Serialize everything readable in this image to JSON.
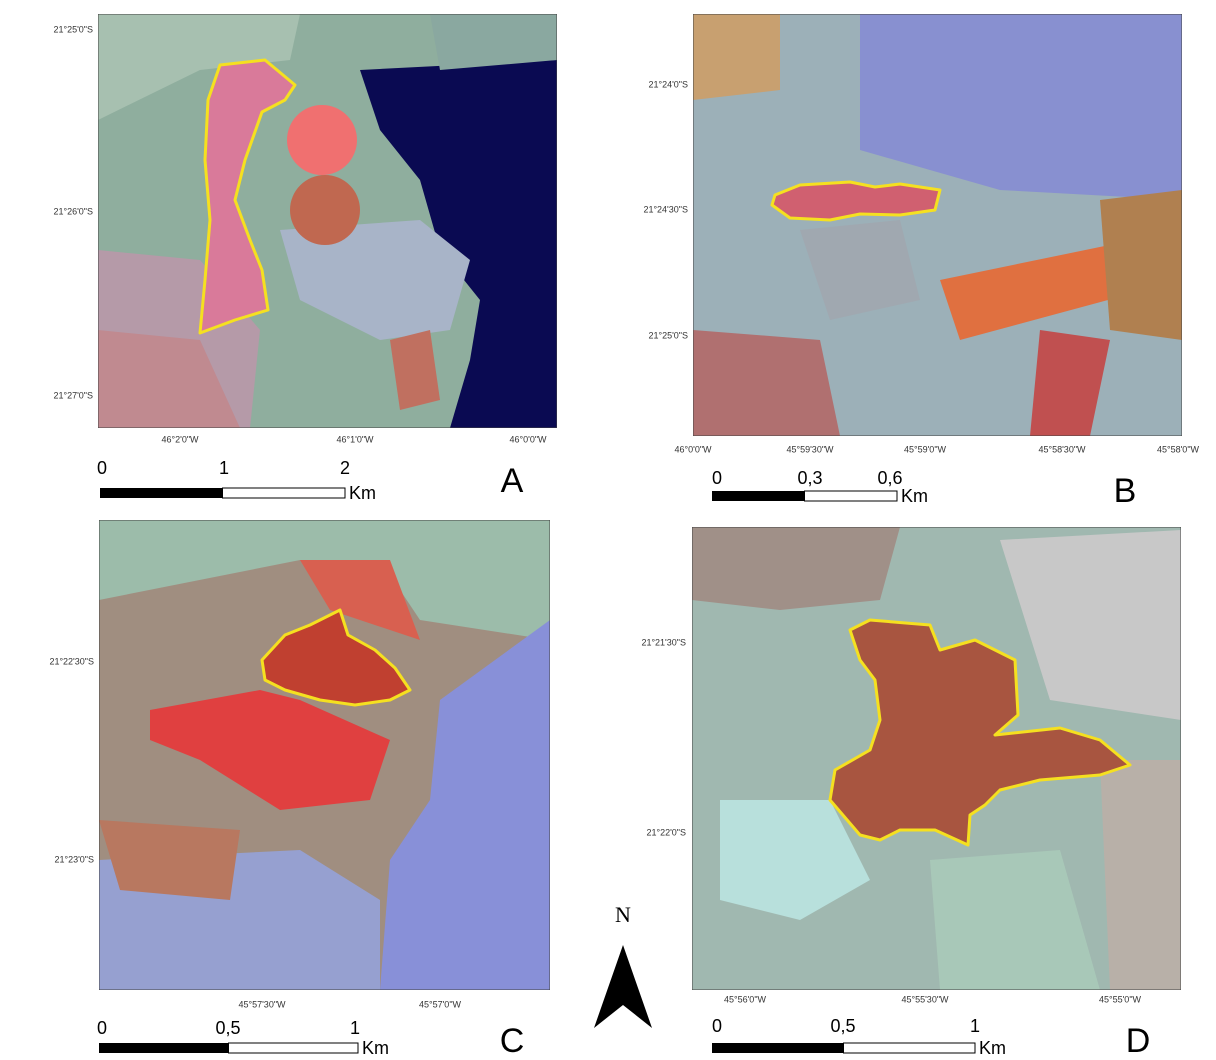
{
  "panels": [
    {
      "letter": "A",
      "lat_labels": [
        "21°25'0\"S",
        "21°26'0\"S",
        "21°27'0\"S"
      ],
      "lon_labels": [
        "46°2'0\"W",
        "46°1'0\"W",
        "46°0'0\"W"
      ],
      "scale_labels": [
        "0",
        "1",
        "2"
      ],
      "scale_unit": "Km"
    },
    {
      "letter": "B",
      "lat_labels": [
        "21°24'0\"S",
        "21°24'30\"S",
        "21°25'0\"S"
      ],
      "lon_labels": [
        "46°0'0\"W",
        "45°59'30\"W",
        "45°59'0\"W",
        "45°58'30\"W",
        "45°58'0\"W"
      ],
      "scale_labels": [
        "0",
        "0,3",
        "0,6"
      ],
      "scale_unit": "Km"
    },
    {
      "letter": "C",
      "lat_labels": [
        "21°22'30\"S",
        "21°23'0\"S"
      ],
      "lon_labels": [
        "45°57'30\"W",
        "45°57'0\"W"
      ],
      "scale_labels": [
        "0",
        "0,5",
        "1"
      ],
      "scale_unit": "Km"
    },
    {
      "letter": "D",
      "lat_labels": [
        "21°21'30\"S",
        "21°22'0\"S"
      ],
      "lon_labels": [
        "45°56'0\"W",
        "45°55'30\"W",
        "45°55'0\"W"
      ],
      "scale_labels": [
        "0",
        "0,5",
        "1"
      ],
      "scale_unit": "Km"
    }
  ],
  "north": "N"
}
